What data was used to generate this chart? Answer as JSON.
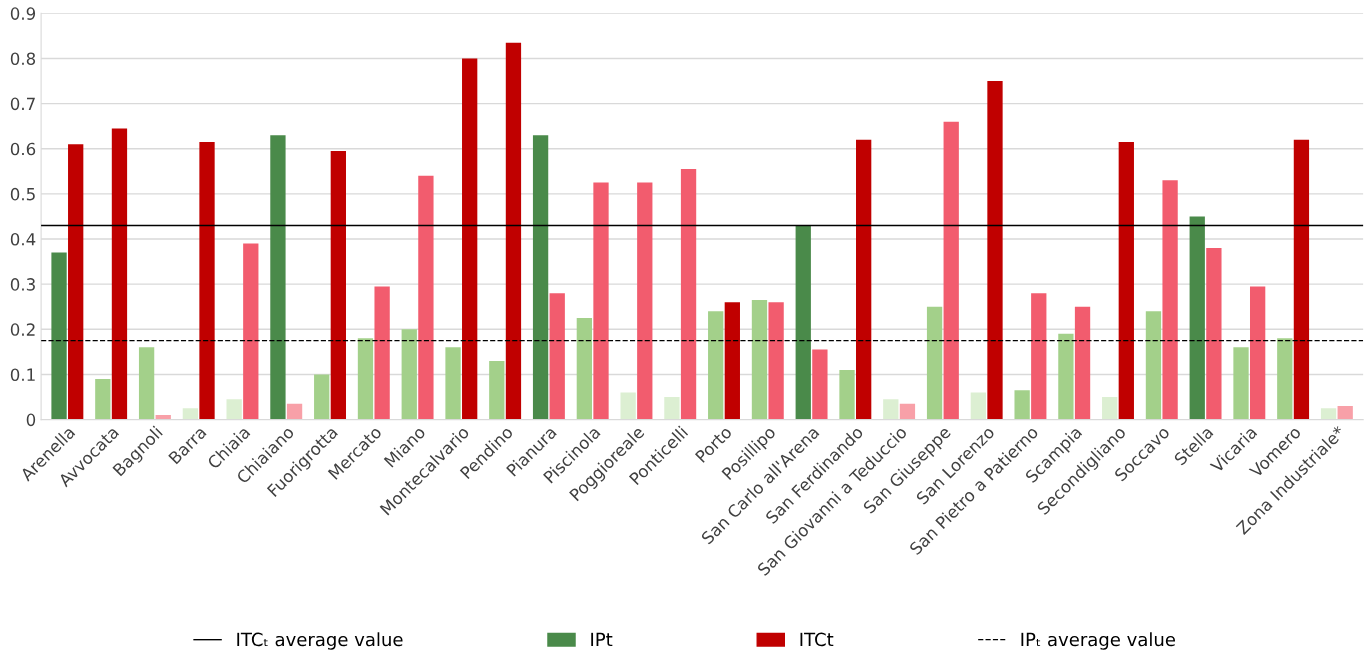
{
  "chart_data": {
    "type": "bar",
    "categories": [
      "Arenella",
      "Avvocata",
      "Bagnoli",
      "Barra",
      "Chiaia",
      "Chiaiano",
      "Fuorigrotta",
      "Mercato",
      "Miano",
      "Montecalvario",
      "Pendino",
      "Pianura",
      "Piscinola",
      "Poggioreale",
      "Ponticelli",
      "Porto",
      "Posillipo",
      "San Carlo all'Arena",
      "San Ferdinando",
      "San Giovanni a Teduccio",
      "San Giuseppe",
      "San Lorenzo",
      "San Pietro a Patierno",
      "Scampia",
      "Secondigliano",
      "Soccavo",
      "Stella",
      "Vicaria",
      "Vomero",
      "Zona Industriale*"
    ],
    "series": [
      {
        "name": "IPt",
        "color": "#4a8a4a",
        "values": [
          0.37,
          0.09,
          0.16,
          0.025,
          0.045,
          0.63,
          0.1,
          0.18,
          0.2,
          0.16,
          0.13,
          0.63,
          0.225,
          0.06,
          0.05,
          0.24,
          0.265,
          0.43,
          0.11,
          0.045,
          0.25,
          0.06,
          0.065,
          0.19,
          0.05,
          0.24,
          0.45,
          0.16,
          0.18,
          0.025
        ],
        "colors": [
          "#4a8a4a",
          "#a3d08a",
          "#a3d08a",
          "#dcefd2",
          "#dcefd2",
          "#4a8a4a",
          "#a3d08a",
          "#a3d08a",
          "#a3d08a",
          "#a3d08a",
          "#a3d08a",
          "#4a8a4a",
          "#a3d08a",
          "#dcefd2",
          "#dcefd2",
          "#a3d08a",
          "#a3d08a",
          "#4a8a4a",
          "#a3d08a",
          "#dcefd2",
          "#a3d08a",
          "#dcefd2",
          "#a3d08a",
          "#a3d08a",
          "#dcefd2",
          "#a3d08a",
          "#4a8a4a",
          "#a3d08a",
          "#a3d08a",
          "#dcefd2"
        ]
      },
      {
        "name": "ITCt",
        "color": "#c00000",
        "values": [
          0.61,
          0.645,
          0.01,
          0.615,
          0.39,
          0.035,
          0.595,
          0.295,
          0.54,
          0.8,
          0.835,
          0.28,
          0.525,
          0.525,
          0.555,
          0.26,
          0.26,
          0.155,
          0.62,
          0.035,
          0.66,
          0.75,
          0.28,
          0.25,
          0.615,
          0.53,
          0.38,
          0.295,
          0.62,
          0.03
        ],
        "colors": [
          "#c00000",
          "#c00000",
          "#f8a0a8",
          "#c00000",
          "#f25c6e",
          "#f8a0a8",
          "#c00000",
          "#f25c6e",
          "#f25c6e",
          "#c00000",
          "#c00000",
          "#f25c6e",
          "#f25c6e",
          "#f25c6e",
          "#f25c6e",
          "#c00000",
          "#f25c6e",
          "#f25c6e",
          "#c00000",
          "#f8a0a8",
          "#f25c6e",
          "#c00000",
          "#f25c6e",
          "#f25c6e",
          "#c00000",
          "#f25c6e",
          "#f25c6e",
          "#f25c6e",
          "#c00000",
          "#f8a0a8"
        ]
      }
    ],
    "ylim": [
      0,
      0.9
    ],
    "yticks": [
      0,
      0.1,
      0.2,
      0.3,
      0.4,
      0.5,
      0.6,
      0.7,
      0.8,
      0.9
    ],
    "grid": "y",
    "legend": "bottom",
    "ref_lines": [
      {
        "axis": "y",
        "value": 0.43,
        "label": "ITCₜ average value",
        "color": "#000000",
        "line_style": "solid"
      },
      {
        "axis": "y",
        "value": 0.175,
        "label": "IPₜ average value",
        "color": "#000000",
        "line_style": "dashed"
      }
    ]
  }
}
